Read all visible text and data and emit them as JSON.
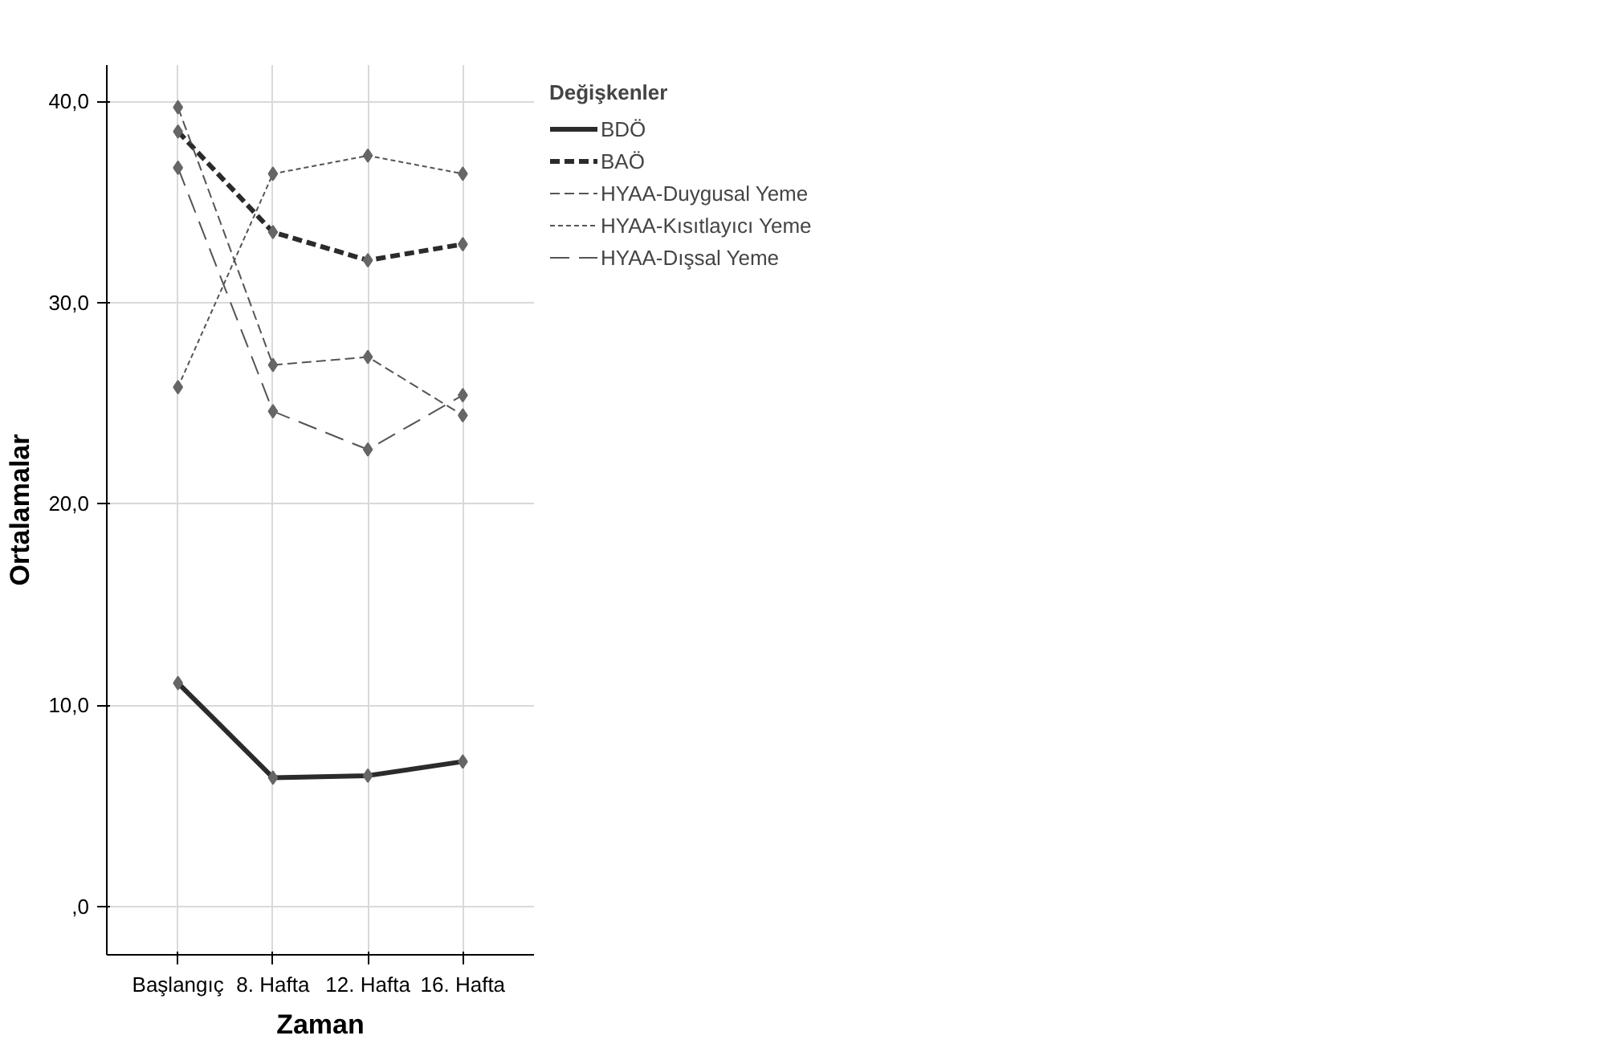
{
  "chart_data": {
    "type": "line",
    "xlabel": "Zaman",
    "ylabel": "Ortalamalar",
    "legend_title": "Değişkenler",
    "categories": [
      "Başlangıç",
      "8. Hafta",
      "12. Hafta",
      "16. Hafta"
    ],
    "series": [
      {
        "name": "BDÖ",
        "color": "#2b2b2b",
        "line_style": "solid",
        "values": [
          11.1,
          6.4,
          6.5,
          7.2
        ]
      },
      {
        "name": "BAÖ",
        "color": "#2b2b2b",
        "line_style": "dashed",
        "values": [
          38.5,
          33.5,
          32.1,
          32.9
        ]
      },
      {
        "name": "HYAA-Duygusal Yeme",
        "color": "#555555",
        "line_style": "dashed",
        "values": [
          39.7,
          26.9,
          27.3,
          24.4
        ]
      },
      {
        "name": "HYAA-Kısıtlayıcı Yeme",
        "color": "#555555",
        "line_style": "dotted",
        "values": [
          25.8,
          36.4,
          37.3,
          36.4
        ]
      },
      {
        "name": "HYAA-Dışsal Yeme",
        "color": "#555555",
        "line_style": "dashed",
        "values": [
          36.7,
          24.6,
          22.7,
          25.4
        ]
      }
    ],
    "ylim": [
      -2.4,
      41.8
    ],
    "yticks": [
      {
        "value": 0,
        "label": ",0"
      },
      {
        "value": 10,
        "label": "10,0"
      },
      {
        "value": 20,
        "label": "20,0"
      },
      {
        "value": 30,
        "label": "30,0"
      },
      {
        "value": 40,
        "label": "40,0"
      }
    ],
    "grid": true,
    "legend": "right",
    "marker": "diamond"
  }
}
